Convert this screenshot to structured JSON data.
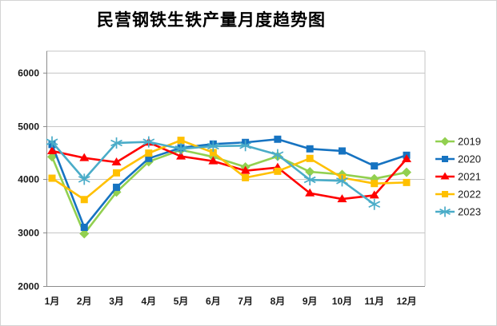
{
  "window": {
    "title": "民营钢铁生铁产量月度趋势图"
  },
  "colors": {
    "background": "#FFFFFF",
    "gridline": "#C6C6C6",
    "axis_line": "#8C8C8C",
    "text": "#1A1A1A"
  },
  "chart_data": {
    "type": "line",
    "title": "民营钢铁生铁产量月度趋势图",
    "xlabel": "",
    "ylabel": "",
    "ylim": [
      2000,
      6400
    ],
    "yticks": [
      2000,
      3000,
      4000,
      5000,
      6000
    ],
    "grid": true,
    "legend_position": "right",
    "categories": [
      "1月",
      "2月",
      "3月",
      "4月",
      "5月",
      "6月",
      "7月",
      "8月",
      "9月",
      "10月",
      "11月",
      "12月"
    ],
    "series": [
      {
        "name": "2019",
        "color": "#92D050",
        "marker": "diamond",
        "values": [
          4420,
          2980,
          3760,
          4330,
          4550,
          4420,
          4230,
          4430,
          4140,
          4090,
          4010,
          4130
        ]
      },
      {
        "name": "2020",
        "color": "#1673C1",
        "marker": "square",
        "values": [
          4650,
          3100,
          3850,
          4390,
          4590,
          4660,
          4690,
          4750,
          4570,
          4530,
          4250,
          4450
        ]
      },
      {
        "name": "2021",
        "color": "#FF0000",
        "marker": "triangle",
        "values": [
          4530,
          4400,
          4320,
          4690,
          4430,
          4340,
          4160,
          4220,
          3740,
          3630,
          3700,
          4380
        ]
      },
      {
        "name": "2022",
        "color": "#FFC000",
        "marker": "square",
        "values": [
          4020,
          3620,
          4120,
          4490,
          4730,
          4500,
          4030,
          4150,
          4390,
          4030,
          3920,
          3940
        ]
      },
      {
        "name": "2023",
        "color": "#4AACC8",
        "marker": "asterisk",
        "values": [
          4700,
          4000,
          4680,
          4700,
          4570,
          4620,
          4630,
          4460,
          3990,
          3970,
          3530,
          null
        ]
      }
    ]
  }
}
